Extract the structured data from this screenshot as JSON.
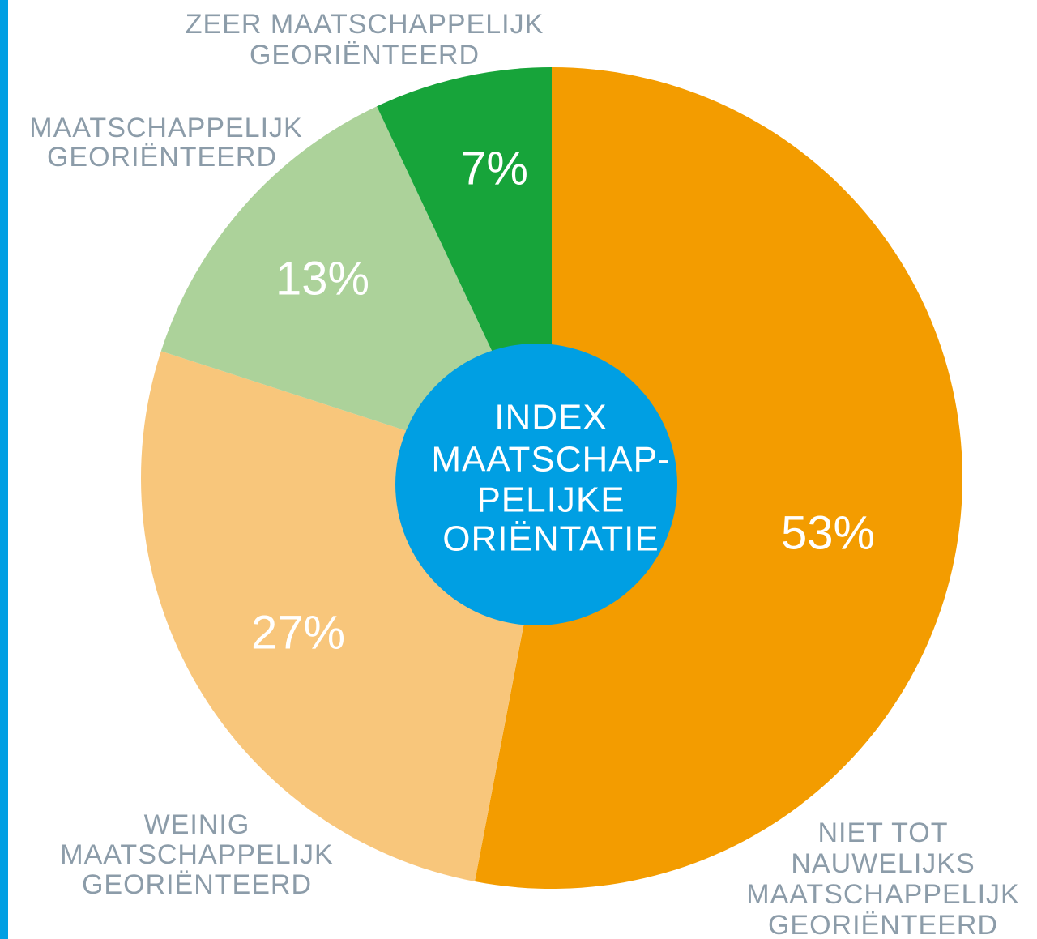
{
  "chart_data": {
    "type": "donut",
    "center_label": [
      "INDEX",
      "MAATSCHAP-",
      "PELIJKE",
      "ORIËNTATIE"
    ],
    "categories": [
      [
        "NIET TOT",
        "NAUWELIJKS",
        "MAATSCHAPPELIJK",
        "GEORIËNTEERD"
      ],
      [
        "WEINIG",
        "MAATSCHAPPELIJK",
        "GEORIËNTEERD"
      ],
      [
        "MAATSCHAPPELIJK",
        "GEORIËNTEERD"
      ],
      [
        "ZEER MAATSCHAPPELIJK",
        "GEORIËNTEERD"
      ]
    ],
    "values": [
      53,
      27,
      13,
      7
    ],
    "value_labels": [
      "53%",
      "27%",
      "13%",
      "7%"
    ],
    "colors": [
      "#f39c00",
      "#f8c67b",
      "#acd29a",
      "#17a43a"
    ],
    "center_color": "#009fe3"
  }
}
